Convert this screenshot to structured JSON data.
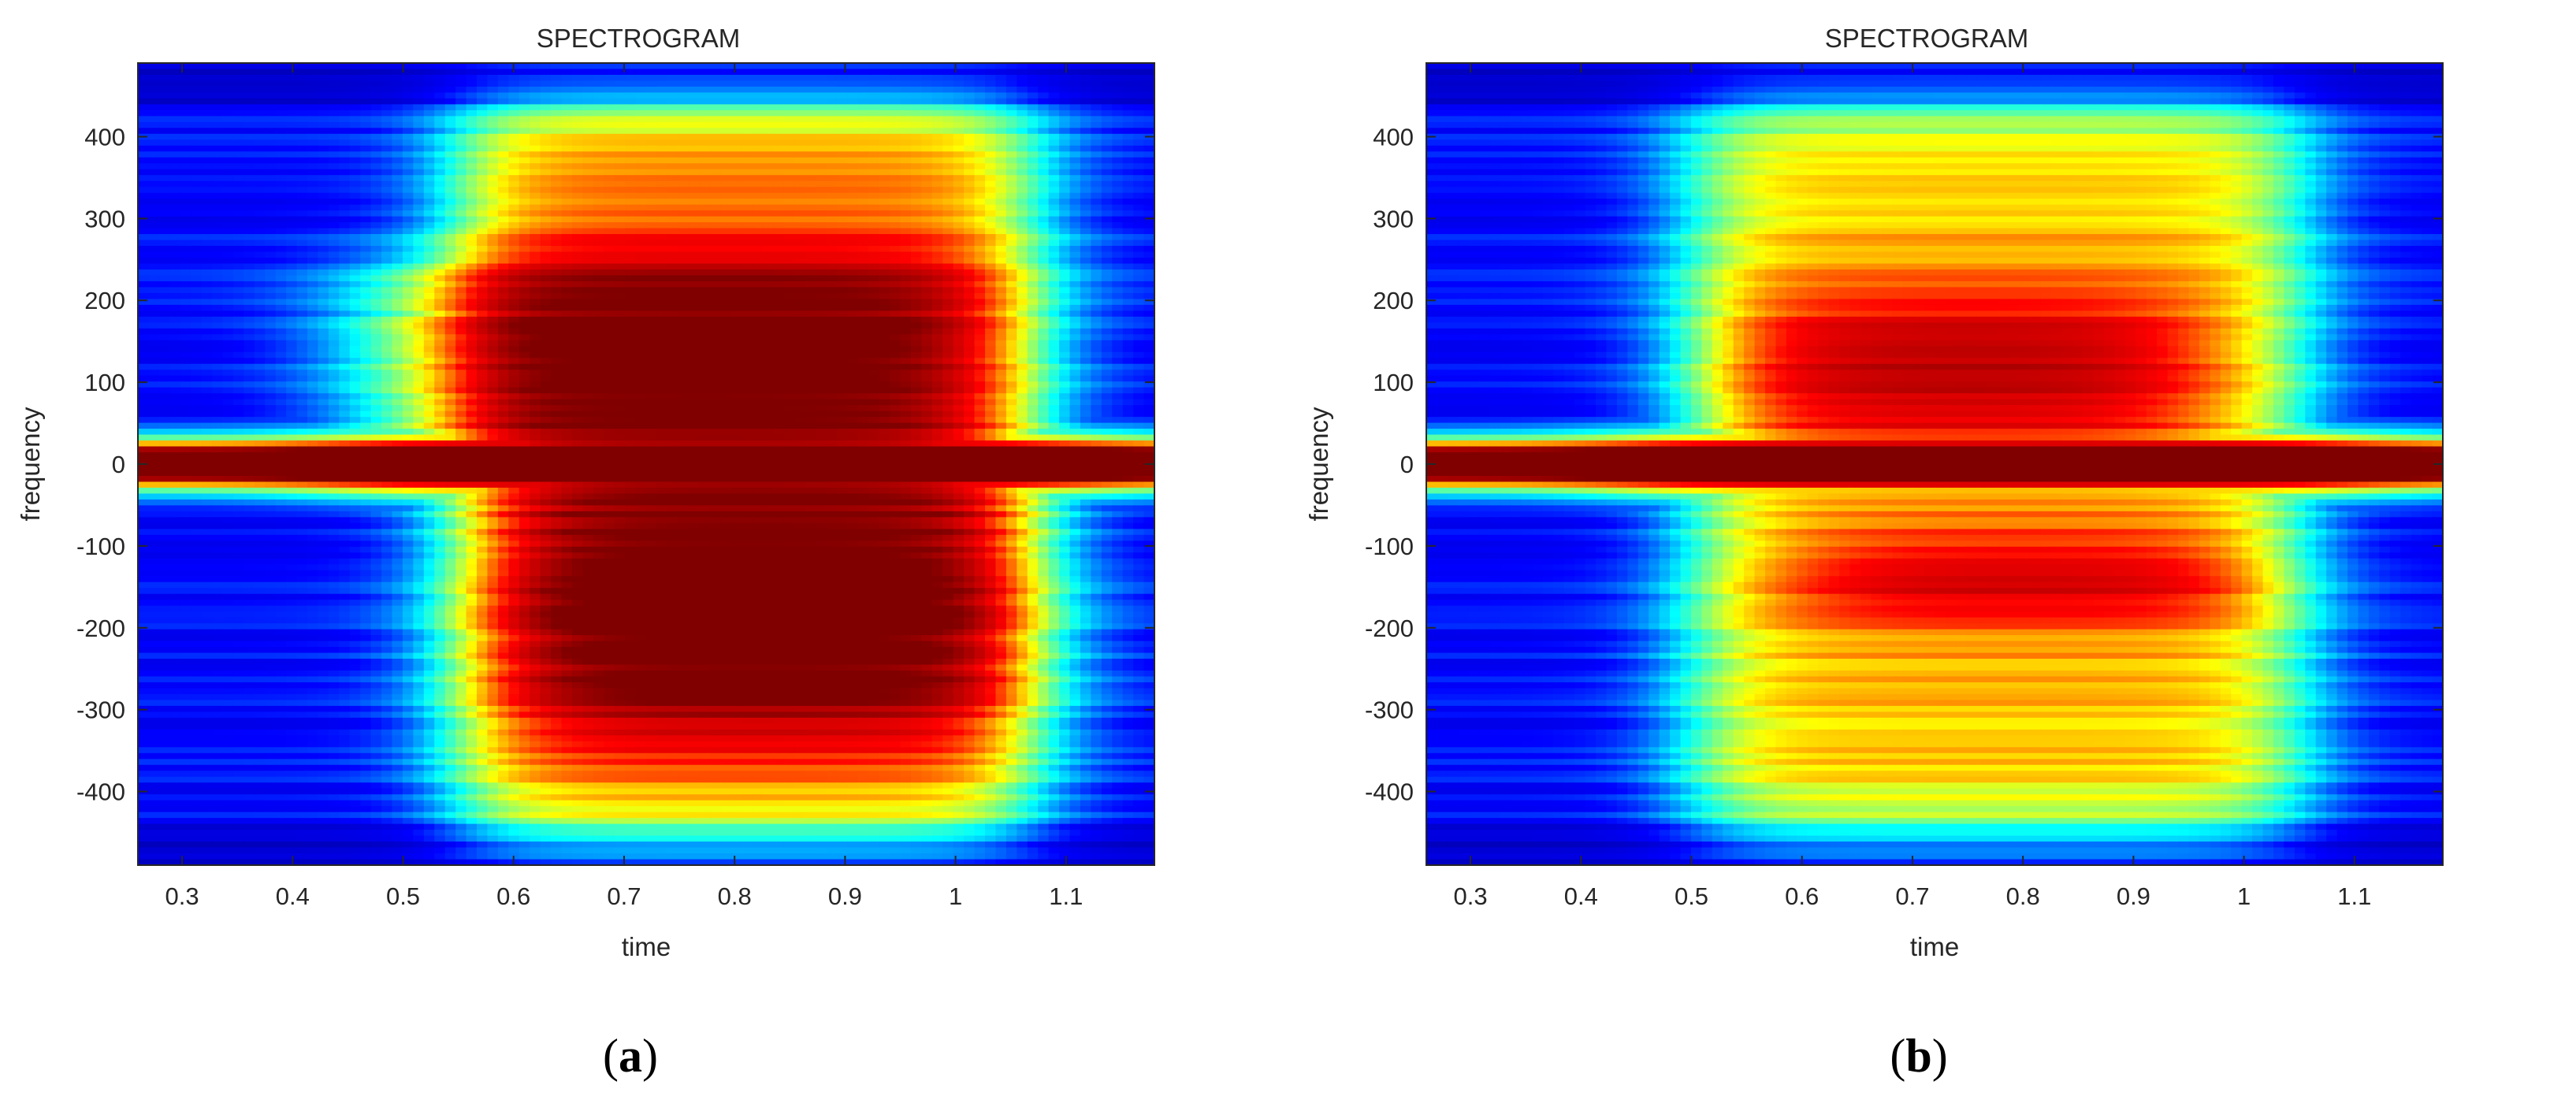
{
  "chart_data": [
    {
      "type": "heatmap",
      "panel_label": "a",
      "title": "SPECTROGRAM",
      "xlabel": "time",
      "ylabel": "frequency",
      "xlim": [
        0.26,
        1.18
      ],
      "ylim": [
        -490,
        490
      ],
      "xticks": [
        0.3,
        0.4,
        0.5,
        0.6,
        0.7,
        0.8,
        0.9,
        1,
        1.1
      ],
      "xtick_labels": [
        "0.3",
        "0.4",
        "0.5",
        "0.6",
        "0.7",
        "0.8",
        "0.9",
        "1",
        "1.1"
      ],
      "yticks": [
        400,
        300,
        200,
        100,
        0,
        -100,
        -200,
        -300,
        -400
      ],
      "ytick_labels": [
        "400",
        "300",
        "200",
        "100",
        "0",
        "-100",
        "-200",
        "-300",
        "-400"
      ],
      "colormap": [
        "#00008f",
        "#0000ff",
        "#00ffff",
        "#ffff00",
        "#ff0000",
        "#800000"
      ],
      "intensity_scale": [
        0,
        1
      ],
      "features": [
        {
          "kind": "dc_line",
          "frequency": 0,
          "intensity": 1.0
        },
        {
          "kind": "envelope_band",
          "time_start": 0.55,
          "time_end": 1.07,
          "freq_low": -460,
          "freq_high": 440,
          "intensity": 0.52
        },
        {
          "kind": "upper_lobe",
          "time_start": 0.45,
          "time_end": 1.02,
          "freq_low": 20,
          "freq_high": 240,
          "intensity": 0.8
        },
        {
          "kind": "lower_lobe",
          "time_start": 0.6,
          "time_end": 1.05,
          "freq_low": -320,
          "freq_high": -20,
          "intensity": 0.82
        }
      ]
    },
    {
      "type": "heatmap",
      "panel_label": "b",
      "title": "SPECTROGRAM",
      "xlabel": "time",
      "ylabel": "frequency",
      "xlim": [
        0.26,
        1.18
      ],
      "ylim": [
        -490,
        490
      ],
      "xticks": [
        0.3,
        0.4,
        0.5,
        0.6,
        0.7,
        0.8,
        0.9,
        1,
        1.1
      ],
      "xtick_labels": [
        "0.3",
        "0.4",
        "0.5",
        "0.6",
        "0.7",
        "0.8",
        "0.9",
        "1",
        "1.1"
      ],
      "yticks": [
        400,
        300,
        200,
        100,
        0,
        -100,
        -200,
        -300,
        -400
      ],
      "ytick_labels": [
        "400",
        "300",
        "200",
        "100",
        "0",
        "-100",
        "-200",
        "-300",
        "-400"
      ],
      "colormap": [
        "#00008f",
        "#0000ff",
        "#00ffff",
        "#ffff00",
        "#ff0000",
        "#800000"
      ],
      "intensity_scale": [
        0,
        1
      ],
      "features": [
        {
          "kind": "dc_line",
          "frequency": 0,
          "intensity": 1.0
        },
        {
          "kind": "envelope_band",
          "time_start": 0.5,
          "time_end": 1.05,
          "freq_low": -460,
          "freq_high": 440,
          "intensity": 0.45
        },
        {
          "kind": "upper_lobe",
          "time_start": 0.55,
          "time_end": 0.95,
          "freq_low": 40,
          "freq_high": 190,
          "intensity": 0.75
        },
        {
          "kind": "lower_lobe",
          "time_start": 0.6,
          "time_end": 1.0,
          "freq_low": -170,
          "freq_high": -100,
          "intensity": 0.78
        }
      ]
    }
  ]
}
